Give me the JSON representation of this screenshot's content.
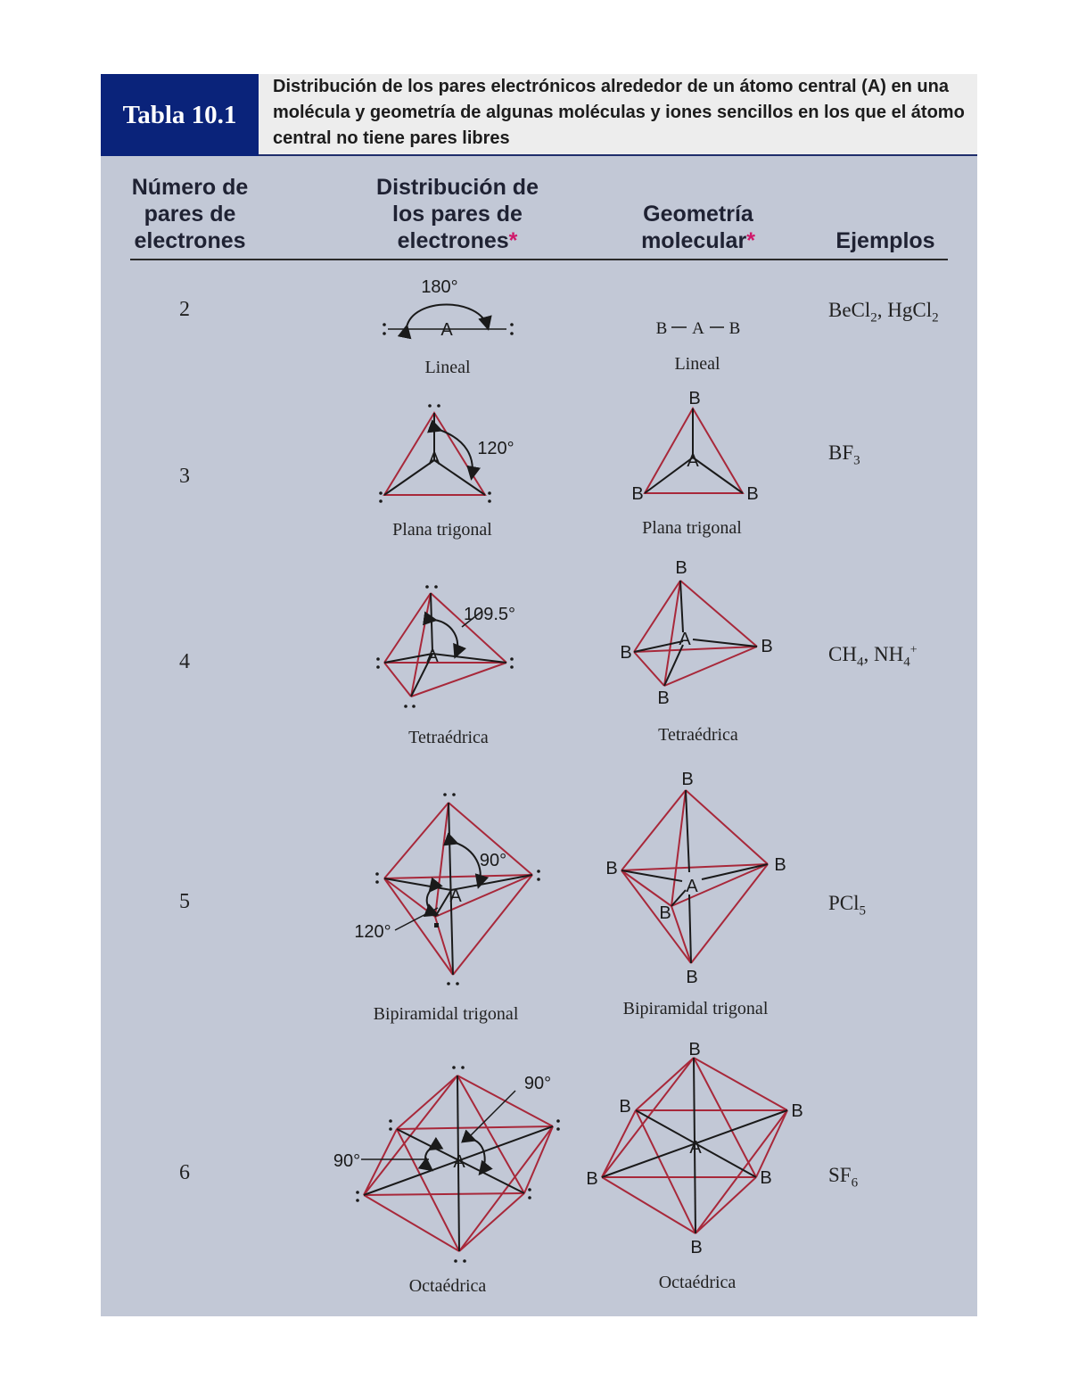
{
  "title": {
    "label": "Tabla 10.1",
    "text": "Distribución de los pares electrónicos alrededor de un átomo central (A) en una molécula y geometría de algunas moléculas y iones sencillos en los que el átomo central no tiene pares libres"
  },
  "headers": {
    "col1": "Número de pares de electrones",
    "col2": "Distribución de los pares de electrones",
    "col3": "Geometría molecular",
    "col4": "Ejemplos",
    "asterisk": "*"
  },
  "rows": [
    {
      "n": "2",
      "arrangement": "Lineal",
      "geometry": "Lineal",
      "examples": "BeCl2, HgCl2",
      "angle": "180°"
    },
    {
      "n": "3",
      "arrangement": "Plana trigonal",
      "geometry": "Plana trigonal",
      "examples": "BF3",
      "angle": "120°"
    },
    {
      "n": "4",
      "arrangement": "Tetraédrica",
      "geometry": "Tetraédrica",
      "examples": "CH4, NH4+",
      "angle": "109.5°"
    },
    {
      "n": "5",
      "arrangement": "Bipiramidal trigonal",
      "geometry": "Bipiramidal trigonal",
      "examples": "PCl5",
      "angle_a": "90°",
      "angle_b": "120°"
    },
    {
      "n": "6",
      "arrangement": "Octaédrica",
      "geometry": "Octaédrica",
      "examples": "SF6",
      "angle_a": "90°",
      "angle_b": "90°"
    }
  ],
  "atoms": {
    "central": "A",
    "ligand": "B"
  },
  "colors": {
    "edge": "#a8283a",
    "bond": "#1a1a1a",
    "title_bg": "#0a237a",
    "panel_bg": "#c2c8d6"
  }
}
